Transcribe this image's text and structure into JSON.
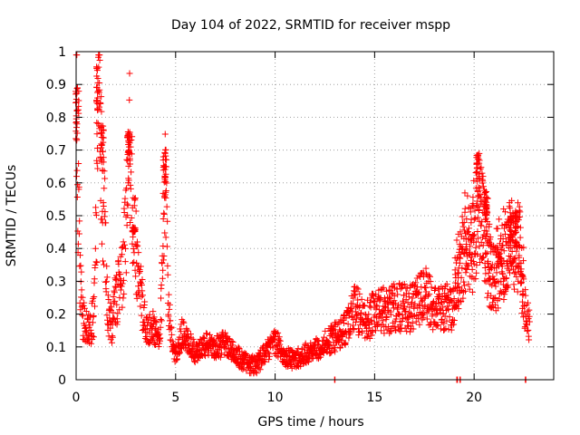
{
  "chart_data": {
    "type": "scatter",
    "title": "Day 104 of 2022, SRMTID for receiver mspp",
    "xlabel": "GPS time / hours",
    "ylabel": "SRMTID / TECUs",
    "xlim": [
      0,
      24
    ],
    "ylim": [
      0,
      1
    ],
    "x_ticks": [
      0,
      5,
      10,
      15,
      20
    ],
    "x_tick_labels": [
      "0",
      "5",
      "10",
      "15",
      "20"
    ],
    "y_ticks": [
      0,
      0.1,
      0.2,
      0.3,
      0.4,
      0.5,
      0.6,
      0.7,
      0.8,
      0.9,
      1
    ],
    "y_tick_labels": [
      "0",
      "0.1",
      "0.2",
      "0.3",
      "0.4",
      "0.5",
      "0.6",
      "0.7",
      "0.8",
      "0.9",
      "1"
    ],
    "grid": true,
    "marker": "+",
    "colors": {
      "series": "#ff0000",
      "grid": "#a0a0a0",
      "axes": "#000000"
    },
    "series_envelope": [
      [
        0.0,
        0.88
      ],
      [
        0.1,
        0.55
      ],
      [
        0.2,
        0.3
      ],
      [
        0.35,
        0.18
      ],
      [
        0.5,
        0.16
      ],
      [
        0.7,
        0.15
      ],
      [
        0.9,
        0.2
      ],
      [
        1.05,
        0.55
      ],
      [
        1.15,
        0.93
      ],
      [
        1.3,
        0.6
      ],
      [
        1.45,
        0.45
      ],
      [
        1.6,
        0.2
      ],
      [
        1.8,
        0.17
      ],
      [
        2.0,
        0.25
      ],
      [
        2.3,
        0.3
      ],
      [
        2.6,
        0.55
      ],
      [
        2.7,
        0.74
      ],
      [
        2.85,
        0.5
      ],
      [
        3.0,
        0.4
      ],
      [
        3.2,
        0.28
      ],
      [
        3.4,
        0.2
      ],
      [
        3.6,
        0.14
      ],
      [
        3.8,
        0.17
      ],
      [
        4.0,
        0.14
      ],
      [
        4.2,
        0.13
      ],
      [
        4.4,
        0.4
      ],
      [
        4.5,
        0.65
      ],
      [
        4.65,
        0.2
      ],
      [
        4.85,
        0.1
      ],
      [
        5.0,
        0.08
      ],
      [
        5.3,
        0.14
      ],
      [
        5.6,
        0.12
      ],
      [
        6.0,
        0.08
      ],
      [
        6.5,
        0.11
      ],
      [
        7.0,
        0.1
      ],
      [
        7.5,
        0.11
      ],
      [
        8.0,
        0.08
      ],
      [
        8.5,
        0.05
      ],
      [
        9.0,
        0.04
      ],
      [
        9.5,
        0.08
      ],
      [
        10.0,
        0.12
      ],
      [
        10.5,
        0.07
      ],
      [
        11.0,
        0.06
      ],
      [
        11.5,
        0.08
      ],
      [
        12.0,
        0.09
      ],
      [
        12.5,
        0.11
      ],
      [
        13.0,
        0.13
      ],
      [
        13.5,
        0.15
      ],
      [
        14.0,
        0.22
      ],
      [
        14.5,
        0.18
      ],
      [
        15.0,
        0.2
      ],
      [
        15.5,
        0.21
      ],
      [
        16.0,
        0.22
      ],
      [
        16.5,
        0.22
      ],
      [
        17.0,
        0.22
      ],
      [
        17.5,
        0.26
      ],
      [
        18.0,
        0.22
      ],
      [
        18.5,
        0.21
      ],
      [
        19.0,
        0.24
      ],
      [
        19.3,
        0.32
      ],
      [
        19.6,
        0.42
      ],
      [
        19.9,
        0.4
      ],
      [
        20.2,
        0.52
      ],
      [
        20.5,
        0.45
      ],
      [
        20.8,
        0.33
      ],
      [
        21.1,
        0.3
      ],
      [
        21.4,
        0.34
      ],
      [
        21.7,
        0.4
      ],
      [
        22.0,
        0.38
      ],
      [
        22.3,
        0.4
      ],
      [
        22.5,
        0.22
      ],
      [
        22.7,
        0.18
      ],
      [
        22.8,
        0.15
      ]
    ],
    "spike_clusters": [
      {
        "x": 0.05,
        "peak": 0.89
      },
      {
        "x": 1.1,
        "peak": 0.96
      },
      {
        "x": 1.3,
        "peak": 0.78
      },
      {
        "x": 2.65,
        "peak": 0.76
      },
      {
        "x": 2.9,
        "peak": 0.45
      },
      {
        "x": 4.45,
        "peak": 0.71
      },
      {
        "x": 20.2,
        "peak": 0.69
      },
      {
        "x": 20.6,
        "peak": 0.58
      },
      {
        "x": 21.8,
        "peak": 0.5
      },
      {
        "x": 22.1,
        "peak": 0.51
      }
    ],
    "zero_markers": [
      13.0,
      19.15,
      19.3,
      22.6
    ]
  }
}
